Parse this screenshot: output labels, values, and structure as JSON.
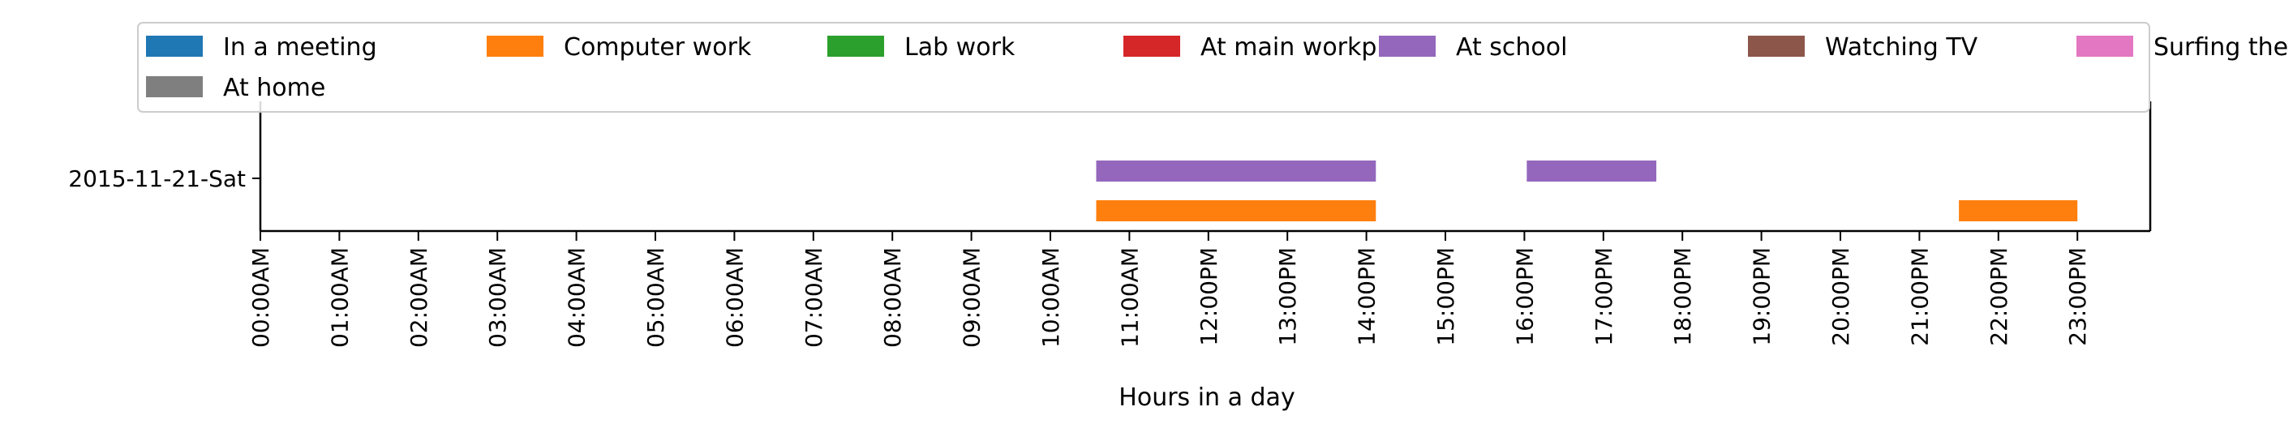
{
  "chart_data": {
    "type": "timeline",
    "xlabel": "Hours in a day",
    "x_ticks": [
      "00:00AM",
      "01:00AM",
      "02:00AM",
      "03:00AM",
      "04:00AM",
      "05:00AM",
      "06:00AM",
      "07:00AM",
      "08:00AM",
      "09:00AM",
      "10:00AM",
      "11:00AM",
      "12:00PM",
      "13:00PM",
      "14:00PM",
      "15:00PM",
      "16:00PM",
      "17:00PM",
      "18:00PM",
      "19:00PM",
      "20:00PM",
      "21:00PM",
      "22:00PM",
      "23:00PM"
    ],
    "xlim_hours": [
      0,
      24
    ],
    "categories": [
      "2015-11-21-Sat"
    ],
    "legend": {
      "placement": "top",
      "columns": 7,
      "entries": [
        {
          "name": "In a meeting",
          "color": "#1f77b4"
        },
        {
          "name": "Computer work",
          "color": "#ff7f0e"
        },
        {
          "name": "Lab work",
          "color": "#2ca02c"
        },
        {
          "name": "At main workplace",
          "color": "#d62728"
        },
        {
          "name": "At school",
          "color": "#9467bd"
        },
        {
          "name": "Watching TV",
          "color": "#8c564b"
        },
        {
          "name": "Surfing the internet",
          "color": "#e377c2"
        },
        {
          "name": "At home",
          "color": "#7f7f7f"
        }
      ]
    },
    "series": [
      {
        "name": "At school",
        "color": "#9467bd",
        "row": "2015-11-21-Sat",
        "lane": "upper",
        "intervals": [
          [
            10.58,
            14.12
          ],
          [
            16.03,
            17.67
          ]
        ]
      },
      {
        "name": "Computer work",
        "color": "#ff7f0e",
        "row": "2015-11-21-Sat",
        "lane": "lower",
        "intervals": [
          [
            10.58,
            14.12
          ],
          [
            21.5,
            23.0
          ]
        ]
      }
    ],
    "grid": false
  }
}
